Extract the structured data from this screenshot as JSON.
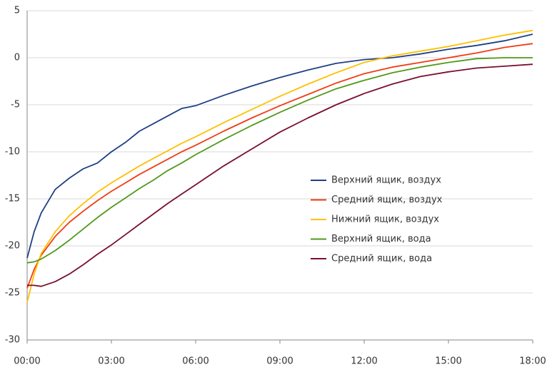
{
  "chart_data": {
    "type": "line",
    "x": [
      0,
      0.25,
      0.5,
      1,
      1.5,
      2,
      2.5,
      3,
      3.5,
      4,
      4.5,
      5,
      5.5,
      6,
      7,
      8,
      9,
      10,
      11,
      12,
      13,
      14,
      15,
      16,
      17,
      18
    ],
    "xlim": [
      0,
      18
    ],
    "xticks": [
      {
        "value": 0,
        "label": "00:00"
      },
      {
        "value": 3,
        "label": "03:00"
      },
      {
        "value": 6,
        "label": "06:00"
      },
      {
        "value": 9,
        "label": "09:00"
      },
      {
        "value": 12,
        "label": "12:00"
      },
      {
        "value": 15,
        "label": "15:00"
      },
      {
        "value": 18,
        "label": "18:00"
      }
    ],
    "ylim": [
      -30,
      5
    ],
    "yticks": [
      -30,
      -25,
      -20,
      -15,
      -10,
      -5,
      0,
      5
    ],
    "grid": true,
    "legend_position": "center-right",
    "series": [
      {
        "name": "Верхний ящик, воздух",
        "color": "#1f3f85",
        "values": [
          -21.3,
          -18.5,
          -16.5,
          -14,
          -12.8,
          -11.8,
          -11.2,
          -10,
          -9,
          -7.8,
          -7,
          -6.2,
          -5.4,
          -5.1,
          -4,
          -3,
          -2.1,
          -1.3,
          -0.6,
          -0.2,
          0,
          0.4,
          0.9,
          1.3,
          1.8,
          2.5
        ]
      },
      {
        "name": "Средний ящик, воздух",
        "color": "#f03c14",
        "values": [
          -24.5,
          -22.5,
          -21,
          -19,
          -17.5,
          -16.3,
          -15.2,
          -14.2,
          -13.3,
          -12.4,
          -11.6,
          -10.8,
          -10,
          -9.3,
          -7.8,
          -6.4,
          -5.1,
          -3.9,
          -2.7,
          -1.7,
          -1,
          -0.5,
          0,
          0.5,
          1.1,
          1.5
        ]
      },
      {
        "name": "Нижний ящик, воздух",
        "color": "#ffc000",
        "values": [
          -26,
          -23,
          -20.8,
          -18.5,
          -16.8,
          -15.5,
          -14.3,
          -13.3,
          -12.4,
          -11.5,
          -10.7,
          -9.9,
          -9.1,
          -8.4,
          -6.9,
          -5.5,
          -4.1,
          -2.8,
          -1.6,
          -0.5,
          0.2,
          0.7,
          1.2,
          1.8,
          2.4,
          2.9
        ]
      },
      {
        "name": "Верхний ящик, вода",
        "color": "#4f9a1a",
        "values": [
          -21.8,
          -21.7,
          -21.4,
          -20.5,
          -19.4,
          -18.2,
          -17,
          -15.9,
          -14.9,
          -13.9,
          -13,
          -12,
          -11.2,
          -10.3,
          -8.7,
          -7.2,
          -5.8,
          -4.5,
          -3.3,
          -2.4,
          -1.6,
          -1,
          -0.5,
          -0.1,
          0,
          0
        ]
      },
      {
        "name": "Средний ящик, вода",
        "color": "#7a0f2c",
        "values": [
          -24.2,
          -24.2,
          -24.3,
          -23.8,
          -23,
          -22,
          -20.9,
          -19.9,
          -18.8,
          -17.7,
          -16.6,
          -15.5,
          -14.5,
          -13.5,
          -11.5,
          -9.7,
          -7.9,
          -6.4,
          -5,
          -3.8,
          -2.8,
          -2,
          -1.5,
          -1.1,
          -0.9,
          -0.7
        ]
      }
    ]
  }
}
